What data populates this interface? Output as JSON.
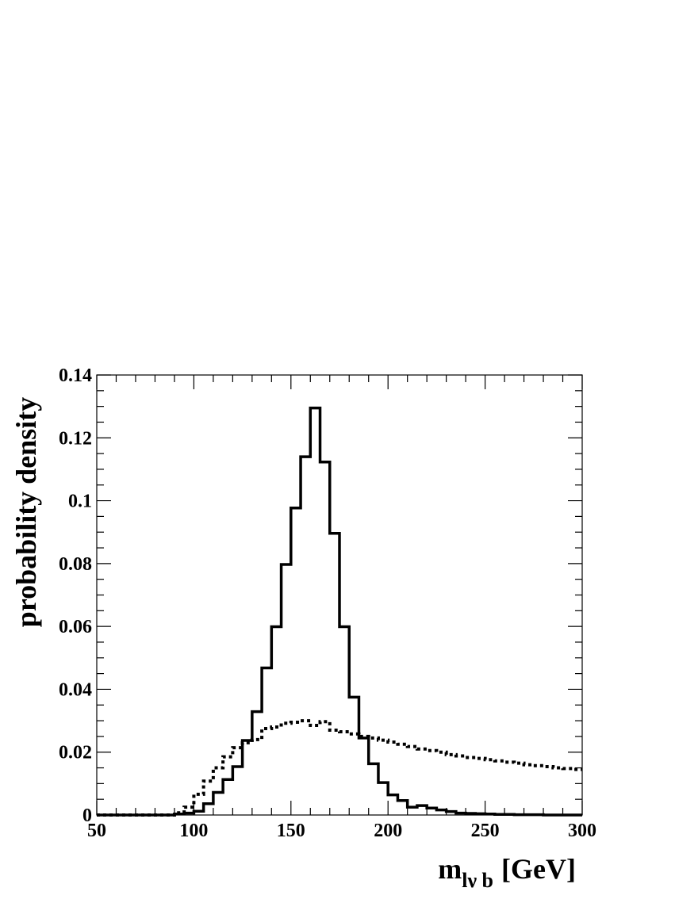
{
  "chart_data": {
    "type": "histogram",
    "ylabel": "probability density",
    "xlabel": {
      "main": "m",
      "sub": "lν b",
      "unit": "[GeV]"
    },
    "xlim": [
      50,
      300
    ],
    "ylim": [
      0,
      0.14
    ],
    "xticks": [
      "50",
      "100",
      "150",
      "200",
      "250",
      "300"
    ],
    "yticks": [
      "0",
      "0.02",
      "0.04",
      "0.06",
      "0.08",
      "0.1",
      "0.12",
      "0.14"
    ],
    "grid": false,
    "legend": "none",
    "bin_width": 5,
    "series": [
      {
        "style": "solid",
        "color": "#000000",
        "bin_edges_start": 50,
        "values": [
          0,
          0,
          0,
          0,
          0,
          0,
          0,
          0,
          0.0003,
          0.0006,
          0.0012,
          0.0036,
          0.0072,
          0.0113,
          0.0154,
          0.0237,
          0.0329,
          0.0468,
          0.0599,
          0.0797,
          0.0977,
          0.114,
          0.1295,
          0.1123,
          0.0896,
          0.0599,
          0.0375,
          0.0245,
          0.0163,
          0.0103,
          0.0064,
          0.0046,
          0.0025,
          0.003,
          0.0022,
          0.0016,
          0.0011,
          0.0006,
          0.0005,
          0.0004,
          0.0003,
          0.0002,
          0.0002,
          0.0001,
          0.0001,
          0.0001,
          0,
          0,
          0,
          0
        ]
      },
      {
        "style": "dotted",
        "color": "#000000",
        "bin_edges_start": 50,
        "values": [
          0,
          0,
          0,
          0,
          0,
          0,
          0,
          0,
          0.0007,
          0.0025,
          0.0066,
          0.0108,
          0.015,
          0.0185,
          0.0214,
          0.023,
          0.024,
          0.0275,
          0.028,
          0.0292,
          0.0295,
          0.03,
          0.0285,
          0.0297,
          0.027,
          0.0265,
          0.0258,
          0.025,
          0.0245,
          0.0238,
          0.0232,
          0.0225,
          0.0218,
          0.021,
          0.0205,
          0.02,
          0.0192,
          0.0188,
          0.0183,
          0.018,
          0.0176,
          0.0172,
          0.0168,
          0.0165,
          0.016,
          0.0157,
          0.0154,
          0.015,
          0.0148,
          0.0145
        ]
      }
    ]
  }
}
